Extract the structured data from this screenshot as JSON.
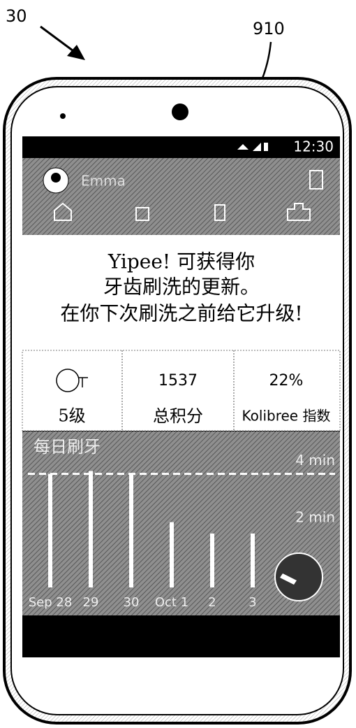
{
  "figure_label": "30",
  "callout_label": "910",
  "status_bar": {
    "time": "12:30"
  },
  "header": {
    "user_name": "Emma"
  },
  "message": {
    "lines": [
      "Yipee! 可获得你",
      "牙齿刷洗的更新。",
      "在你下次刷洗之前给它升级!"
    ]
  },
  "stats": [
    {
      "label": "5级"
    },
    {
      "value": "1537",
      "label": "总积分"
    },
    {
      "value": "22%",
      "label": "Kolibree 指数"
    }
  ],
  "chart": {
    "type": "bar",
    "title": "每日刷牙",
    "categories": [
      "Sep 28",
      "29",
      "30",
      "Oct 1",
      "2",
      "3"
    ],
    "values": [
      4,
      4.1,
      4,
      2.3,
      1.9,
      1.9
    ],
    "ylim": [
      0,
      5
    ],
    "yticks": [
      {
        "value": 2,
        "label": "2 min"
      },
      {
        "value": 4,
        "label": "4 min"
      }
    ],
    "target": 4,
    "color": "#ffffff"
  }
}
